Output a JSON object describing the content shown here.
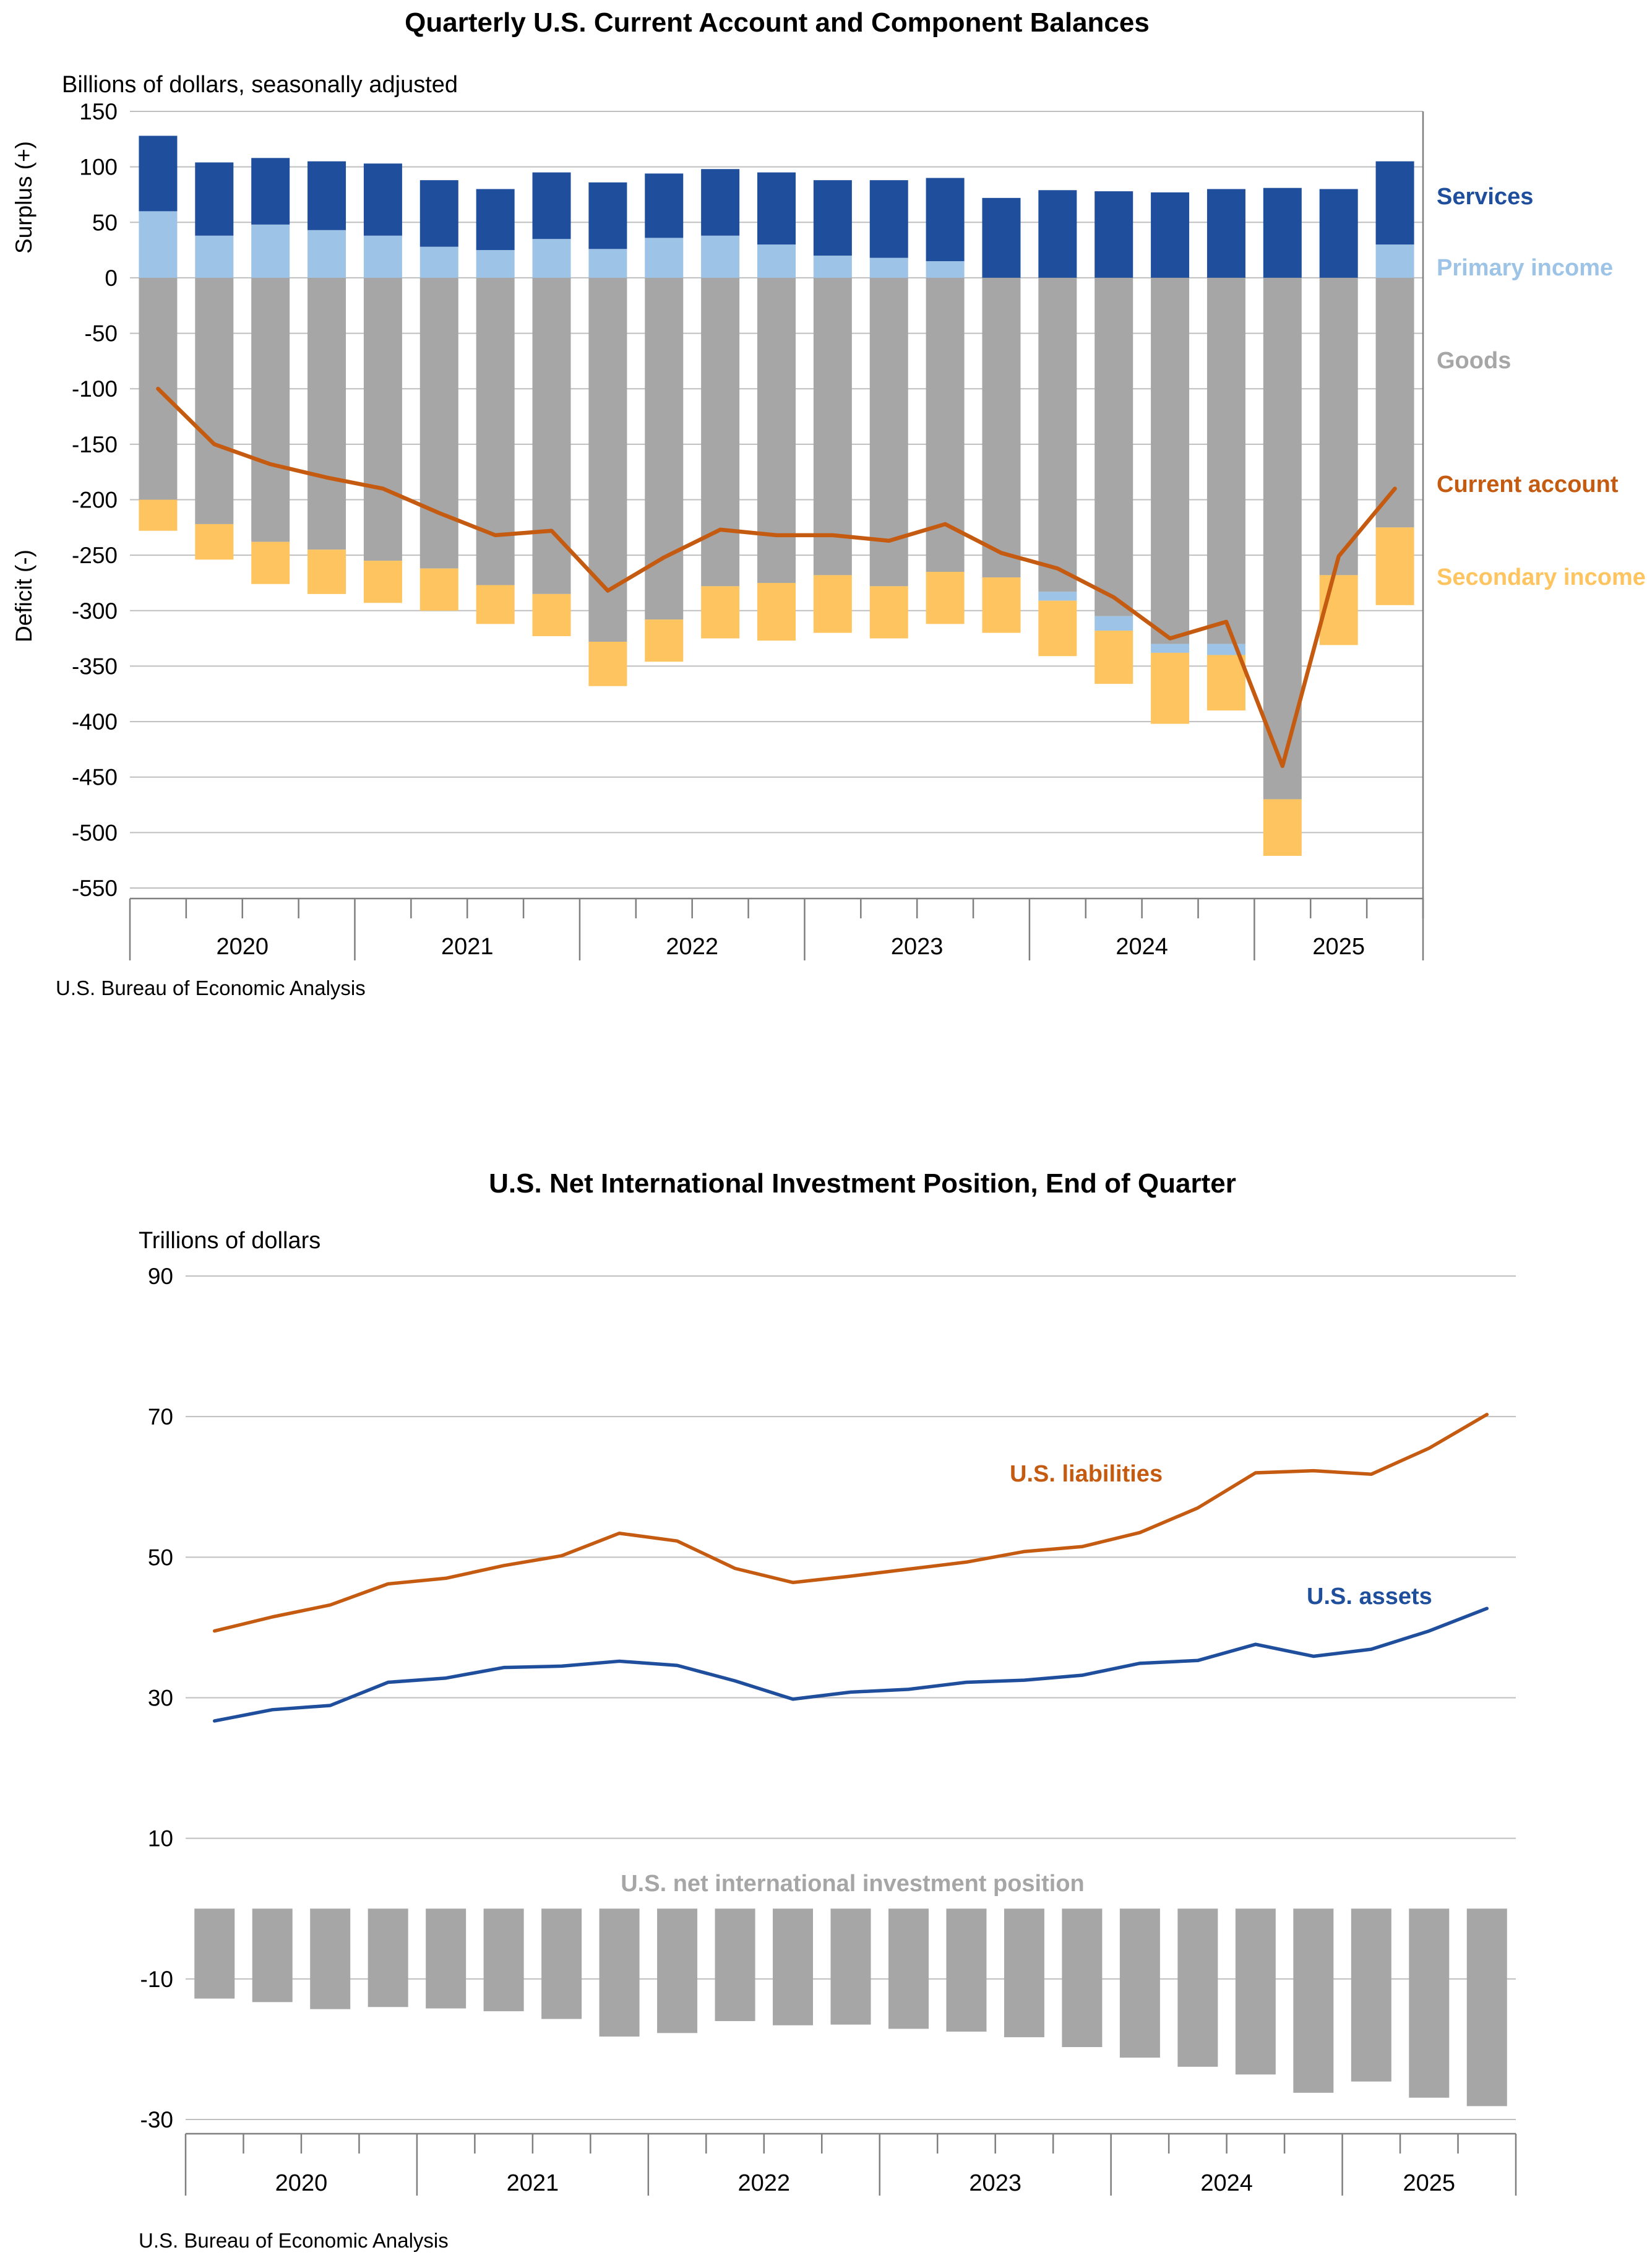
{
  "chart_data": [
    {
      "type": "bar",
      "variant": "stacked-bars-with-line",
      "title": "Quarterly U.S. Current Account and Component Balances",
      "units_label": "Billions of dollars, seasonally adjusted",
      "y_axis_annotations": [
        "Surplus (+)",
        "Deficit (-)"
      ],
      "source": "U.S. Bureau of Economic Analysis",
      "ylim": [
        -550,
        150
      ],
      "yticks": [
        150,
        100,
        50,
        0,
        -50,
        -100,
        -150,
        -200,
        -250,
        -300,
        -350,
        -400,
        -450,
        -500,
        -550
      ],
      "grid": true,
      "legend_position": "right-of-plot",
      "x_year_labels": [
        "2020",
        "2021",
        "2022",
        "2023",
        "2024",
        "2025"
      ],
      "quarters": [
        "2020 Q1",
        "2020 Q2",
        "2020 Q3",
        "2020 Q4",
        "2021 Q1",
        "2021 Q2",
        "2021 Q3",
        "2021 Q4",
        "2022 Q1",
        "2022 Q2",
        "2022 Q3",
        "2022 Q4",
        "2023 Q1",
        "2023 Q2",
        "2023 Q3",
        "2023 Q4",
        "2024 Q1",
        "2024 Q2",
        "2024 Q3",
        "2024 Q4",
        "2025 Q1",
        "2025 Q2",
        "2025 Q3"
      ],
      "series": [
        {
          "name": "Services",
          "color": "#1F4E9C",
          "values": [
            68,
            66,
            60,
            62,
            65,
            60,
            55,
            60,
            60,
            58,
            60,
            65,
            68,
            70,
            75,
            72,
            79,
            78,
            77,
            80,
            81,
            80,
            75
          ]
        },
        {
          "name": "Primary income",
          "color": "#9DC3E6",
          "values": [
            60,
            38,
            48,
            43,
            38,
            28,
            25,
            35,
            26,
            36,
            38,
            30,
            20,
            18,
            15,
            0,
            -8,
            -13,
            -8,
            -10,
            0,
            0,
            30
          ]
        },
        {
          "name": "Goods",
          "color": "#A6A6A6",
          "values": [
            -200,
            -222,
            -238,
            -245,
            -255,
            -262,
            -277,
            -285,
            -328,
            -308,
            -278,
            -275,
            -268,
            -278,
            -265,
            -270,
            -283,
            -305,
            -330,
            -330,
            -470,
            -268,
            -225
          ]
        },
        {
          "name": "Secondary income",
          "color": "#FDC45F",
          "values": [
            -28,
            -32,
            -38,
            -40,
            -38,
            -38,
            -35,
            -38,
            -40,
            -38,
            -47,
            -52,
            -52,
            -47,
            -47,
            -50,
            -50,
            -48,
            -64,
            -50,
            -51,
            -63,
            -70
          ]
        }
      ],
      "line_series": {
        "name": "Current account",
        "color": "#C55A11",
        "values": [
          -100,
          -150,
          -168,
          -180,
          -190,
          -212,
          -232,
          -228,
          -282,
          -252,
          -227,
          -232,
          -232,
          -237,
          -222,
          -248,
          -262,
          -288,
          -325,
          -310,
          -440,
          -251,
          -190
        ]
      }
    },
    {
      "type": "line",
      "variant": "lines-with-bars",
      "title": "U.S. Net International Investment Position, End of Quarter",
      "units_label": "Trillions of dollars",
      "source": "U.S. Bureau of Economic Analysis",
      "ylim": [
        -30,
        90
      ],
      "yticks": [
        90,
        70,
        50,
        30,
        10,
        -10,
        -30
      ],
      "grid": true,
      "x_year_labels": [
        "2020",
        "2021",
        "2022",
        "2023",
        "2024",
        "2025"
      ],
      "quarters": [
        "2020 Q1",
        "2020 Q2",
        "2020 Q3",
        "2020 Q4",
        "2021 Q1",
        "2021 Q2",
        "2021 Q3",
        "2021 Q4",
        "2022 Q1",
        "2022 Q2",
        "2022 Q3",
        "2022 Q4",
        "2023 Q1",
        "2023 Q2",
        "2023 Q3",
        "2023 Q4",
        "2024 Q1",
        "2024 Q2",
        "2024 Q3",
        "2024 Q4",
        "2025 Q1",
        "2025 Q2",
        "2025 Q3"
      ],
      "series": [
        {
          "name": "U.S. liabilities",
          "kind": "line",
          "color": "#C55A11",
          "values": [
            39.5,
            41.5,
            43.2,
            46.2,
            47.0,
            48.8,
            50.2,
            53.4,
            52.3,
            48.4,
            46.4,
            47.3,
            48.3,
            49.3,
            50.8,
            51.5,
            53.5,
            57.0,
            62.0,
            62.3,
            61.8,
            65.5,
            70.3
          ]
        },
        {
          "name": "U.S. assets",
          "kind": "line",
          "color": "#1F4E9C",
          "values": [
            26.7,
            28.3,
            28.9,
            32.2,
            32.8,
            34.3,
            34.5,
            35.2,
            34.6,
            32.4,
            29.8,
            30.8,
            31.2,
            32.2,
            32.5,
            33.2,
            34.9,
            35.3,
            37.6,
            35.9,
            36.9,
            39.5,
            42.7
          ]
        },
        {
          "name": "U.S. net international investment position",
          "kind": "bar",
          "color": "#A6A6A6",
          "values": [
            -12.8,
            -13.3,
            -14.3,
            -14.0,
            -14.2,
            -14.6,
            -15.7,
            -18.2,
            -17.7,
            -16.0,
            -16.6,
            -16.5,
            -17.1,
            -17.5,
            -18.3,
            -19.7,
            -21.2,
            -22.5,
            -23.6,
            -26.2,
            -24.6,
            -26.9,
            -28.1
          ]
        }
      ]
    }
  ]
}
